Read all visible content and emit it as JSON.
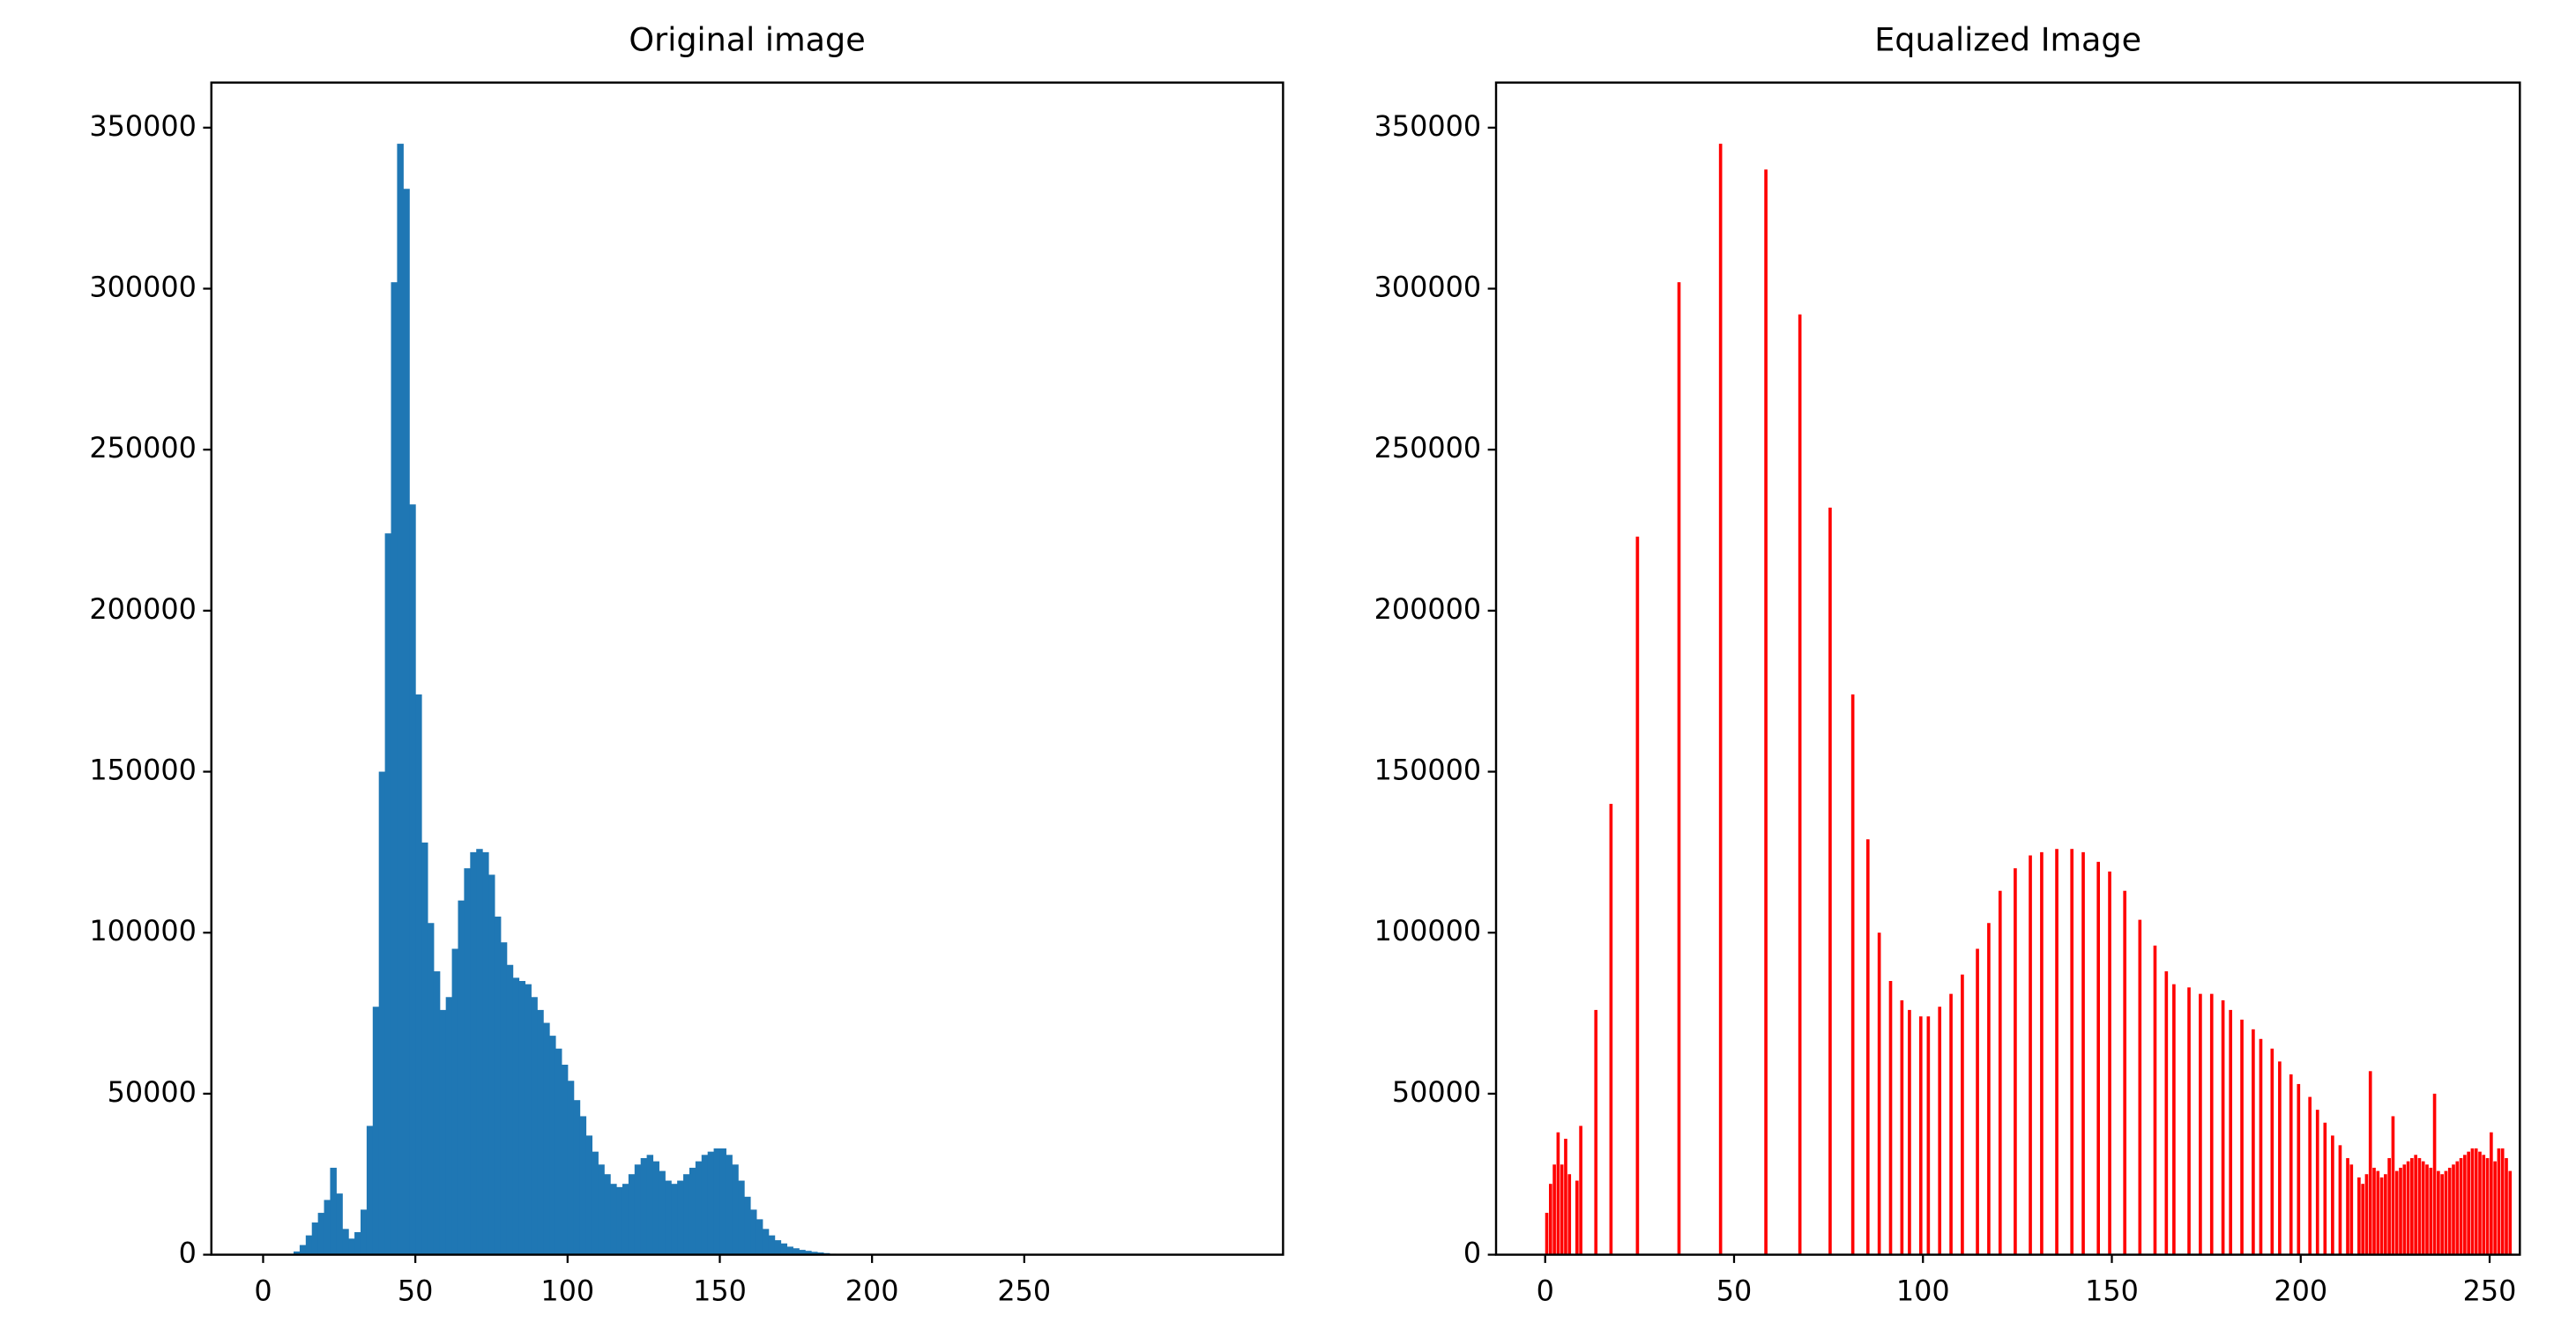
{
  "chart_data": [
    {
      "type": "histogram",
      "title": "Original image",
      "color": "#1f77b4",
      "bins": [
        10,
        12,
        14,
        16,
        18,
        20,
        22,
        24,
        26,
        28,
        30,
        32,
        34,
        36,
        38,
        40,
        42,
        44,
        46,
        48,
        50,
        52,
        54,
        56,
        58,
        60,
        62,
        64,
        66,
        68,
        70,
        72,
        74,
        76,
        78,
        80,
        82,
        84,
        86,
        88,
        90,
        92,
        94,
        96,
        98,
        100,
        102,
        104,
        106,
        108,
        110,
        112,
        114,
        116,
        118,
        120,
        122,
        124,
        126,
        128,
        130,
        132,
        134,
        136,
        138,
        140,
        142,
        144,
        146,
        148,
        150,
        152,
        154,
        156,
        158,
        160,
        162,
        164,
        166,
        168,
        170,
        172,
        174,
        176,
        178,
        180,
        182,
        184,
        186,
        188,
        190,
        192
      ],
      "values": [
        1000,
        3000,
        6000,
        10000,
        13000,
        17000,
        27000,
        19000,
        8000,
        5000,
        7000,
        14000,
        40000,
        77000,
        150000,
        224000,
        302000,
        345000,
        331000,
        233000,
        174000,
        128000,
        103000,
        88000,
        76000,
        80000,
        95000,
        110000,
        120000,
        125000,
        126000,
        125000,
        118000,
        105000,
        97000,
        90000,
        86000,
        85000,
        84000,
        80000,
        76000,
        72000,
        68000,
        64000,
        59000,
        54000,
        48000,
        43000,
        37000,
        32000,
        28000,
        25000,
        22000,
        21000,
        22000,
        25000,
        28000,
        30000,
        31000,
        29000,
        26000,
        23000,
        22000,
        23000,
        25000,
        27000,
        29000,
        31000,
        32000,
        33000,
        33000,
        31000,
        28000,
        23000,
        18000,
        14000,
        11000,
        8000,
        6000,
        4500,
        3500,
        2500,
        2000,
        1500,
        1200,
        900,
        700,
        500,
        300,
        200,
        100
      ],
      "xlim": [
        -17,
        335
      ],
      "xticks": [
        0,
        50,
        100,
        150,
        200,
        250
      ],
      "ylim": [
        0,
        364000
      ],
      "yticks": [
        0,
        50000,
        100000,
        150000,
        200000,
        250000,
        300000,
        350000
      ]
    },
    {
      "type": "bar",
      "title": "Equalized Image",
      "color": "#ff0000",
      "x": [
        0,
        1,
        2,
        3,
        4,
        5,
        6,
        8,
        9,
        13,
        17,
        24,
        35,
        46,
        58,
        67,
        75,
        81,
        85,
        88,
        91,
        94,
        96,
        99,
        101,
        104,
        107,
        110,
        114,
        117,
        120,
        124,
        128,
        131,
        135,
        139,
        142,
        146,
        149,
        153,
        157,
        161,
        164,
        166,
        170,
        173,
        176,
        179,
        181,
        184,
        187,
        189,
        192,
        194,
        197,
        199,
        202,
        204,
        206,
        208,
        210,
        212,
        213,
        215,
        216,
        217,
        218,
        219,
        220,
        221,
        222,
        223,
        224,
        225,
        226,
        227,
        228,
        229,
        230,
        231,
        232,
        233,
        234,
        235,
        236,
        237,
        238,
        239,
        240,
        241,
        242,
        243,
        244,
        245,
        246,
        247,
        248,
        249,
        250,
        251,
        252,
        253,
        254,
        255
      ],
      "values": [
        13000,
        22000,
        28000,
        38000,
        28000,
        36000,
        25000,
        23000,
        40000,
        76000,
        140000,
        223000,
        302000,
        345000,
        337000,
        292000,
        232000,
        174000,
        129000,
        100000,
        85000,
        79000,
        76000,
        74000,
        74000,
        77000,
        81000,
        87000,
        95000,
        103000,
        113000,
        120000,
        124000,
        125000,
        126000,
        126000,
        125000,
        122000,
        119000,
        113000,
        104000,
        96000,
        88000,
        84000,
        83000,
        81000,
        81000,
        79000,
        76000,
        73000,
        70000,
        67000,
        64000,
        60000,
        56000,
        53000,
        49000,
        45000,
        41000,
        37000,
        34000,
        30000,
        28000,
        24000,
        22000,
        25000,
        57000,
        27000,
        26000,
        24000,
        25000,
        30000,
        43000,
        26000,
        27000,
        28000,
        29000,
        30000,
        31000,
        30000,
        29000,
        28000,
        27000,
        50000,
        26000,
        25000,
        26000,
        27000,
        28000,
        29000,
        30000,
        31000,
        32000,
        33000,
        33000,
        32000,
        31000,
        30000,
        38000,
        29000,
        33000,
        33000,
        30000,
        26000
      ],
      "xlim": [
        -13,
        258
      ],
      "xticks": [
        0,
        50,
        100,
        150,
        200,
        250
      ],
      "ylim": [
        0,
        364000
      ],
      "yticks": [
        0,
        50000,
        100000,
        150000,
        200000,
        250000,
        300000,
        350000
      ]
    }
  ]
}
